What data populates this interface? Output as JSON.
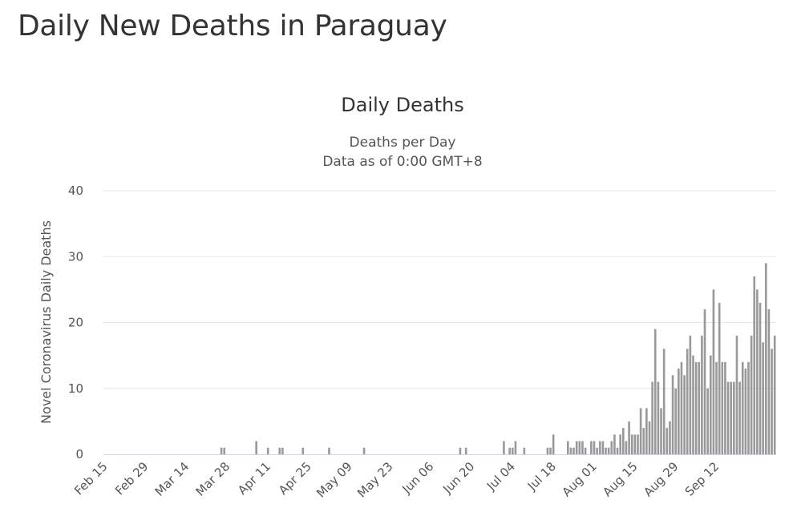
{
  "page": {
    "title": "Daily New Deaths in Paraguay"
  },
  "chart_data": {
    "type": "bar",
    "title": "Daily Deaths",
    "subtitle_lines": [
      "Deaths per Day",
      "Data as of 0:00 GMT+8"
    ],
    "ylabel": "Novel Coronavirus Daily Deaths",
    "xlabel": "",
    "ylim": [
      0,
      40
    ],
    "yticks": [
      0,
      10,
      20,
      30,
      40
    ],
    "grid": true,
    "legend": "none",
    "bar_color": "#999999",
    "grid_color": "#e6e6e6",
    "baseline_color": "#ccd6eb",
    "xticks": [
      "Feb 15",
      "Feb 29",
      "Mar 14",
      "Mar 28",
      "Apr 11",
      "Apr 25",
      "May 09",
      "May 23",
      "Jun 06",
      "Jun 20",
      "Jul 04",
      "Jul 18",
      "Aug 01",
      "Aug 15",
      "Aug 29",
      "Sep 12"
    ],
    "xtick_step_days": 14,
    "series": [
      {
        "name": "Daily Deaths",
        "start_date": "Feb 15",
        "values": [
          0,
          0,
          0,
          0,
          0,
          0,
          0,
          0,
          0,
          0,
          0,
          0,
          0,
          0,
          0,
          0,
          0,
          0,
          0,
          0,
          0,
          0,
          0,
          0,
          0,
          0,
          0,
          0,
          0,
          0,
          0,
          0,
          0,
          0,
          0,
          0,
          0,
          0,
          0,
          0,
          1,
          1,
          0,
          0,
          0,
          0,
          0,
          0,
          0,
          0,
          0,
          0,
          2,
          0,
          0,
          0,
          1,
          0,
          0,
          0,
          1,
          1,
          0,
          0,
          0,
          0,
          0,
          0,
          1,
          0,
          0,
          0,
          0,
          0,
          0,
          0,
          0,
          1,
          0,
          0,
          0,
          0,
          0,
          0,
          0,
          0,
          0,
          0,
          0,
          1,
          0,
          0,
          0,
          0,
          0,
          0,
          0,
          0,
          0,
          0,
          0,
          0,
          0,
          0,
          0,
          0,
          0,
          0,
          0,
          0,
          0,
          0,
          0,
          0,
          0,
          0,
          0,
          0,
          0,
          0,
          0,
          0,
          1,
          0,
          1,
          0,
          0,
          0,
          0,
          0,
          0,
          0,
          0,
          0,
          0,
          0,
          0,
          2,
          0,
          1,
          1,
          2,
          0,
          0,
          1,
          0,
          0,
          0,
          0,
          0,
          0,
          0,
          1,
          1,
          3,
          0,
          0,
          0,
          0,
          2,
          1,
          1,
          2,
          2,
          2,
          1,
          0,
          2,
          2,
          1,
          2,
          2,
          1,
          1,
          2,
          3,
          1,
          3,
          4,
          2,
          5,
          3,
          3,
          3,
          7,
          4,
          7,
          5,
          11,
          19,
          11,
          7,
          16,
          4,
          5,
          12,
          10,
          13,
          14,
          12,
          16,
          18,
          15,
          14,
          14,
          18,
          22,
          10,
          15,
          25,
          14,
          23,
          14,
          14,
          11,
          11,
          11,
          18,
          11,
          14,
          13,
          14,
          18,
          27,
          25,
          23,
          17,
          29,
          22,
          16,
          18
        ]
      }
    ]
  }
}
